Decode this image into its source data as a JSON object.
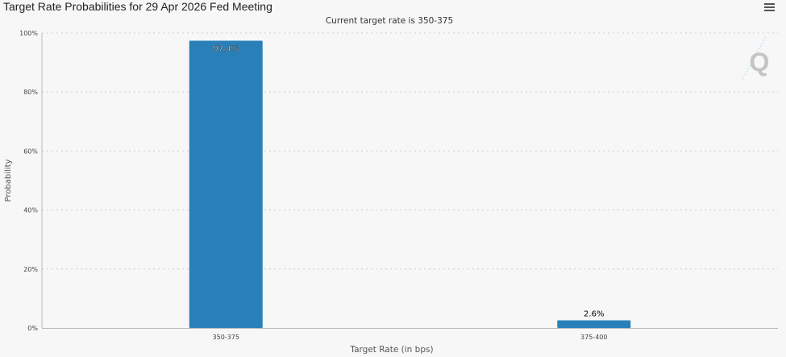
{
  "title": "Target Rate Probabilities for 29 Apr 2026 Fed Meeting",
  "menu_icon": "hamburger-menu-icon",
  "watermark": "Q",
  "chart_data": {
    "type": "bar",
    "title": "Target Rate Probabilities for 29 Apr 2026 Fed Meeting",
    "subtitle": "Current target rate is 350-375",
    "categories": [
      "350-375",
      "375-400"
    ],
    "values": [
      97.4,
      2.6
    ],
    "data_labels": [
      "97.4%",
      "2.6%"
    ],
    "xlabel": "Target Rate (in bps)",
    "ylabel": "Probability",
    "ylim": [
      0,
      100
    ],
    "yticks": [
      "0%",
      "20%",
      "40%",
      "60%",
      "80%",
      "100%"
    ],
    "grid": true,
    "bar_color": "#2980b9"
  }
}
